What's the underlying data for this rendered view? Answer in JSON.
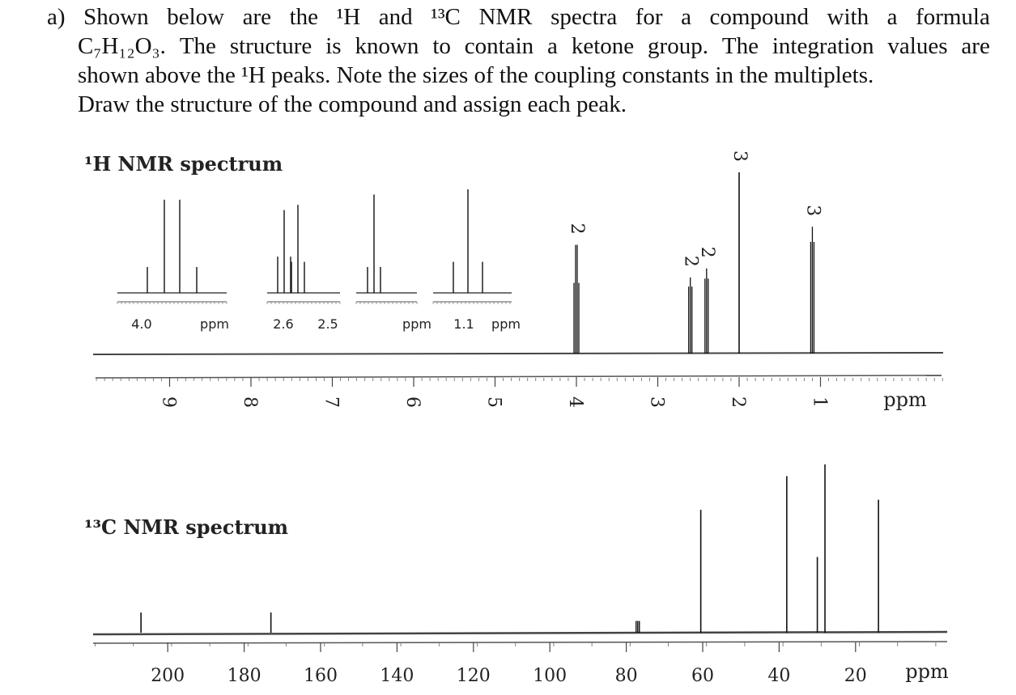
{
  "question": {
    "label": "a)",
    "line1_words": [
      "Shown",
      "below",
      "are",
      "the",
      "¹H",
      "and",
      "¹³C",
      "NMR",
      "spectra",
      "for",
      "a",
      "compound",
      "with",
      "a",
      "formula"
    ],
    "formula": "C₇H₁₂O₃.",
    "line2_rest": [
      "The",
      "structure",
      "is",
      "known",
      "to",
      "contain",
      "a",
      "ketone",
      "group.",
      "The",
      "integration",
      "values",
      "are"
    ],
    "line3": "shown above the ¹H peaks. Note the sizes of the coupling constants in the multiplets.",
    "line4": "Draw the structure of the compound and assign each peak."
  },
  "h_label": "¹H NMR spectrum",
  "c_label": "¹³C NMR spectrum",
  "chart_data": [
    {
      "type": "line",
      "title": "¹H NMR spectrum",
      "x_unit": "ppm",
      "xlim": [
        9.9,
        -0.5
      ],
      "x_ticks": [
        9,
        8,
        7,
        6,
        5,
        4,
        3,
        2,
        1
      ],
      "peaks": [
        {
          "ppm": 4.0,
          "multiplicity": "quartet",
          "integration": "2",
          "rel_height": 0.6
        },
        {
          "ppm": 2.6,
          "multiplicity": "triplet",
          "integration": "2",
          "rel_height": 0.42
        },
        {
          "ppm": 2.4,
          "multiplicity": "triplet",
          "integration": "2",
          "rel_height": 0.47
        },
        {
          "ppm": 2.0,
          "multiplicity": "singlet",
          "integration": "3",
          "rel_height": 1.0
        },
        {
          "ppm": 1.1,
          "multiplicity": "triplet",
          "integration": "3",
          "rel_height": 0.7
        }
      ],
      "insets": [
        {
          "ticks": [
            "4.0",
            "ppm"
          ],
          "multiplicity": "quartet"
        },
        {
          "ticks": [
            "2.6",
            "2.5"
          ],
          "multiplicity": "two triplets"
        },
        {
          "ticks": [
            "ppm"
          ],
          "multiplicity": "triplet"
        },
        {
          "ticks": [
            "1.1",
            "ppm"
          ],
          "multiplicity": "triplet"
        }
      ]
    },
    {
      "type": "line",
      "title": "¹³C NMR spectrum",
      "x_unit": "ppm",
      "xlim": [
        219,
        -8
      ],
      "x_ticks": [
        200,
        180,
        160,
        140,
        120,
        100,
        80,
        60,
        40,
        20
      ],
      "peaks": [
        {
          "ppm": 207,
          "rel_height": 0.12
        },
        {
          "ppm": 173,
          "rel_height": 0.12
        },
        {
          "ppm": 77,
          "rel_height": 0.07,
          "note": "solvent triplet"
        },
        {
          "ppm": 60.5,
          "rel_height": 0.73
        },
        {
          "ppm": 38,
          "rel_height": 0.93
        },
        {
          "ppm": 30,
          "rel_height": 0.45
        },
        {
          "ppm": 28,
          "rel_height": 1.0
        },
        {
          "ppm": 14,
          "rel_height": 0.79
        }
      ]
    }
  ]
}
